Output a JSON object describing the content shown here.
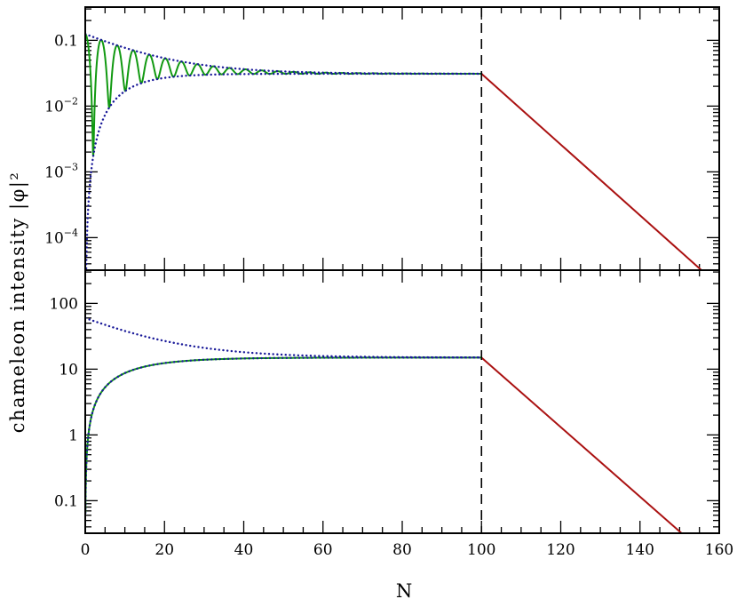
{
  "figure": {
    "ylabel": "chameleon intensity |φ|²",
    "xlabel": "N"
  },
  "chart_data": [
    {
      "id": "top",
      "type": "line",
      "title": "",
      "xlim": [
        0,
        160
      ],
      "ylim": [
        3.2e-05,
        0.32
      ],
      "yscale": "log",
      "grid": false,
      "ytick_labels": [
        {
          "value": 0.1,
          "base": "0.1",
          "exp": ""
        },
        {
          "value": 0.01,
          "base": "10",
          "exp": "−2"
        },
        {
          "value": 0.001,
          "base": "10",
          "exp": "−3"
        },
        {
          "value": 0.0001,
          "base": "10",
          "exp": "−4"
        }
      ],
      "divider_x": 100,
      "series": [
        {
          "id": "oscillating",
          "color": "#119911",
          "style": "solid"
        },
        {
          "id": "upper-envelope",
          "color": "#1a1a99",
          "style": "dotted"
        },
        {
          "id": "lower-envelope",
          "color": "#1a1a99",
          "style": "dotted"
        },
        {
          "id": "decay",
          "color": "#aa1111",
          "style": "solid",
          "x": [
            100,
            155.5
          ],
          "y": [
            0.031,
            3.2e-05
          ]
        }
      ]
    },
    {
      "id": "bottom",
      "type": "line",
      "title": "",
      "xlim": [
        0,
        160
      ],
      "ylim": [
        0.032,
        320
      ],
      "yscale": "log",
      "grid": false,
      "ytick_labels": [
        {
          "value": 100,
          "base": "100",
          "exp": ""
        },
        {
          "value": 10,
          "base": "10",
          "exp": ""
        },
        {
          "value": 1,
          "base": "1",
          "exp": ""
        },
        {
          "value": 0.1,
          "base": "0.1",
          "exp": ""
        }
      ],
      "xtick_labels": [
        "0",
        "20",
        "40",
        "60",
        "80",
        "100",
        "120",
        "140",
        "160"
      ],
      "divider_x": 100,
      "series": [
        {
          "id": "rising",
          "color": "#119911",
          "style": "solid"
        },
        {
          "id": "lower-envelope",
          "color": "#1a1a99",
          "style": "dotted"
        },
        {
          "id": "upper-envelope",
          "color": "#1a1a99",
          "style": "dotted"
        },
        {
          "id": "decay",
          "color": "#aa1111",
          "style": "solid",
          "x": [
            100,
            150.5
          ],
          "y": [
            15,
            0.032
          ]
        }
      ]
    }
  ]
}
